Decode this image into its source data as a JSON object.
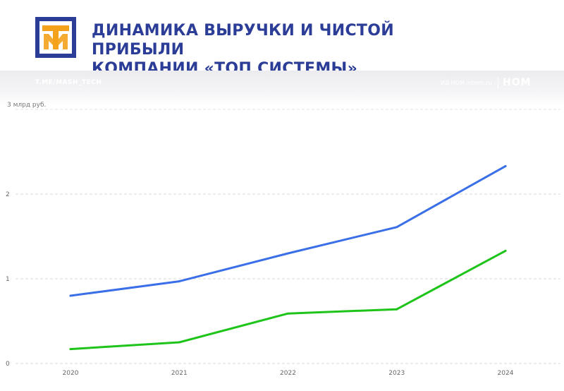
{
  "header": {
    "title_line1": "ДИНАМИКА ВЫРУЧКИ И ЧИСТОЙ ПРИБЫЛИ",
    "title_line2": "КОМПАНИИ «ТОП СИСТЕМЫ»",
    "logo_text": "ТМ"
  },
  "subheader": {
    "channel": "T.ME/MASH_TECH",
    "source": "ИД НОМ inbom.ru",
    "brand": "НОМ"
  },
  "colors": {
    "title": "#2b3d97",
    "logo_orange": "#f4a21b",
    "revenue_line": "#3a6fe8",
    "profit_line": "#1ec41a"
  },
  "chart_data": {
    "type": "line",
    "y_unit_label": "3 млрд руб.",
    "x": [
      "2020",
      "2021",
      "2022",
      "2023",
      "2024"
    ],
    "y_ticks": [
      "0",
      "1",
      "2"
    ],
    "ylim": [
      0,
      3
    ],
    "grid": true,
    "series": [
      {
        "color": "#3a6fe8",
        "values": [
          0.8,
          0.97,
          1.3,
          1.61,
          2.33
        ]
      },
      {
        "color": "#1ec41a",
        "values": [
          0.17,
          0.25,
          0.59,
          0.64,
          1.33
        ]
      }
    ]
  }
}
